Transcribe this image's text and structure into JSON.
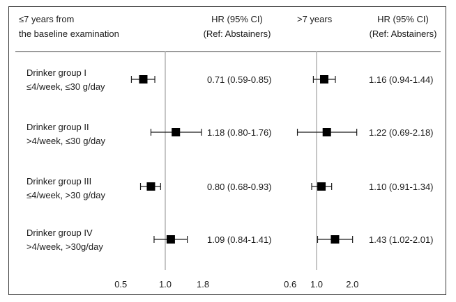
{
  "header": {
    "left_title_line1": "≤7 years from",
    "left_title_line2": "the baseline examination",
    "hr_label_1": "HR (95% CI)",
    "hr_ref_1": "(Ref: Abstainers)",
    "right_title": ">7 years",
    "hr_label_2": "HR (95% CI)",
    "hr_ref_2": "(Ref: Abstainers)"
  },
  "rows": [
    {
      "name": "Drinker group I",
      "desc": "≤4/week, ≤30 g/day",
      "ci_left_text": "0.71 (0.59-0.85)",
      "ci_right_text": "1.16 (0.94-1.44)"
    },
    {
      "name": "Drinker group II",
      "desc": ">4/week, ≤30 g/day",
      "ci_left_text": "1.18 (0.80-1.76)",
      "ci_right_text": "1.22 (0.69-2.18)"
    },
    {
      "name": "Drinker group III",
      "desc": "≤4/week, >30 g/day",
      "ci_left_text": "0.80 (0.68-0.93)",
      "ci_right_text": "1.10 (0.91-1.34)"
    },
    {
      "name": "Drinker group IV",
      "desc": ">4/week, >30g/day",
      "ci_left_text": "1.09 (0.84-1.41)",
      "ci_right_text": "1.43 (1.02-2.01)"
    }
  ],
  "chart_data": [
    {
      "type": "forest",
      "panel": "≤7 years from the baseline examination",
      "scale": "log",
      "reference_line": 1.0,
      "x_ticks": [
        0.5,
        1.0,
        1.8
      ],
      "x_tick_labels": [
        "0.5",
        "1.0",
        "1.8"
      ],
      "categories": [
        "Drinker group I",
        "Drinker group II",
        "Drinker group III",
        "Drinker group IV"
      ],
      "hr": [
        0.71,
        1.18,
        0.8,
        1.09
      ],
      "lower": [
        0.59,
        0.8,
        0.68,
        0.84
      ],
      "upper": [
        0.85,
        1.76,
        0.93,
        1.41
      ]
    },
    {
      "type": "forest",
      "panel": ">7 years",
      "scale": "log",
      "reference_line": 1.0,
      "x_ticks": [
        0.6,
        1.0,
        2.0
      ],
      "x_tick_labels": [
        "0.6",
        "1.0",
        "2.0"
      ],
      "categories": [
        "Drinker group I",
        "Drinker group II",
        "Drinker group III",
        "Drinker group IV"
      ],
      "hr": [
        1.16,
        1.22,
        1.1,
        1.43
      ],
      "lower": [
        0.94,
        0.69,
        0.91,
        1.02
      ],
      "upper": [
        1.44,
        2.18,
        1.34,
        2.01
      ]
    }
  ]
}
